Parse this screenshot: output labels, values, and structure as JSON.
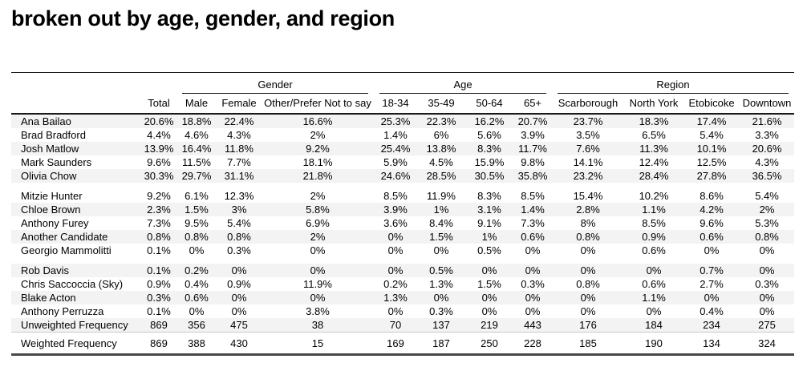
{
  "title": "broken out by age, gender, and region",
  "table": {
    "groups": [
      {
        "label": "Gender",
        "span": 3
      },
      {
        "label": "Age",
        "span": 4
      },
      {
        "label": "Region",
        "span": 4
      }
    ],
    "columns": [
      "Total",
      "Male",
      "Female",
      "Other/Prefer Not to say",
      "18-34",
      "35-49",
      "50-64",
      "65+",
      "Scarborough",
      "North York",
      "Etobicoke",
      "Downtown"
    ],
    "row_groups": [
      {
        "rows": [
          {
            "name": "Ana Bailao",
            "values": [
              "20.6%",
              "18.8%",
              "22.4%",
              "16.6%",
              "25.3%",
              "22.3%",
              "16.2%",
              "20.7%",
              "23.7%",
              "18.3%",
              "17.4%",
              "21.6%"
            ]
          },
          {
            "name": "Brad Bradford",
            "values": [
              "4.4%",
              "4.6%",
              "4.3%",
              "2%",
              "1.4%",
              "6%",
              "5.6%",
              "3.9%",
              "3.5%",
              "6.5%",
              "5.4%",
              "3.3%"
            ]
          },
          {
            "name": "Josh Matlow",
            "values": [
              "13.9%",
              "16.4%",
              "11.8%",
              "9.2%",
              "25.4%",
              "13.8%",
              "8.3%",
              "11.7%",
              "7.6%",
              "11.3%",
              "10.1%",
              "20.6%"
            ]
          },
          {
            "name": "Mark Saunders",
            "values": [
              "9.6%",
              "11.5%",
              "7.7%",
              "18.1%",
              "5.9%",
              "4.5%",
              "15.9%",
              "9.8%",
              "14.1%",
              "12.4%",
              "12.5%",
              "4.3%"
            ]
          },
          {
            "name": "Olivia Chow",
            "values": [
              "30.3%",
              "29.7%",
              "31.1%",
              "21.8%",
              "24.6%",
              "28.5%",
              "30.5%",
              "35.8%",
              "23.2%",
              "28.4%",
              "27.8%",
              "36.5%"
            ]
          }
        ]
      },
      {
        "rows": [
          {
            "name": "Mitzie Hunter",
            "values": [
              "9.2%",
              "6.1%",
              "12.3%",
              "2%",
              "8.5%",
              "11.9%",
              "8.3%",
              "8.5%",
              "15.4%",
              "10.2%",
              "8.6%",
              "5.4%"
            ]
          },
          {
            "name": "Chloe Brown",
            "values": [
              "2.3%",
              "1.5%",
              "3%",
              "5.8%",
              "3.9%",
              "1%",
              "3.1%",
              "1.4%",
              "2.8%",
              "1.1%",
              "4.2%",
              "2%"
            ]
          },
          {
            "name": "Anthony Furey",
            "values": [
              "7.3%",
              "9.5%",
              "5.4%",
              "6.9%",
              "3.6%",
              "8.4%",
              "9.1%",
              "7.3%",
              "8%",
              "8.5%",
              "9.6%",
              "5.3%"
            ]
          },
          {
            "name": "Another Candidate",
            "values": [
              "0.8%",
              "0.8%",
              "0.8%",
              "2%",
              "0%",
              "1.5%",
              "1%",
              "0.6%",
              "0.8%",
              "0.9%",
              "0.6%",
              "0.8%"
            ]
          },
          {
            "name": "Georgio Mammolitti",
            "values": [
              "0.1%",
              "0%",
              "0.3%",
              "0%",
              "0%",
              "0%",
              "0.5%",
              "0%",
              "0%",
              "0.6%",
              "0%",
              "0%"
            ]
          }
        ]
      },
      {
        "rows": [
          {
            "name": "Rob Davis",
            "values": [
              "0.1%",
              "0.2%",
              "0%",
              "0%",
              "0%",
              "0.5%",
              "0%",
              "0%",
              "0%",
              "0%",
              "0.7%",
              "0%"
            ]
          },
          {
            "name": "Chris Saccoccia (Sky)",
            "values": [
              "0.9%",
              "0.4%",
              "0.9%",
              "11.9%",
              "0.2%",
              "1.3%",
              "1.5%",
              "0.3%",
              "0.8%",
              "0.6%",
              "2.7%",
              "0.3%"
            ]
          },
          {
            "name": "Blake Acton",
            "values": [
              "0.3%",
              "0.6%",
              "0%",
              "0%",
              "1.3%",
              "0%",
              "0%",
              "0%",
              "0%",
              "1.1%",
              "0%",
              "0%"
            ]
          },
          {
            "name": "Anthony Perruzza",
            "values": [
              "0.1%",
              "0%",
              "0%",
              "3.8%",
              "0%",
              "0.3%",
              "0%",
              "0%",
              "0%",
              "0%",
              "0.4%",
              "0%"
            ]
          },
          {
            "name": "Unweighted Frequency",
            "values": [
              "869",
              "356",
              "475",
              "38",
              "70",
              "137",
              "219",
              "443",
              "176",
              "184",
              "234",
              "275"
            ]
          }
        ]
      }
    ],
    "footer_row": {
      "name": "Weighted Frequency",
      "values": [
        "869",
        "388",
        "430",
        "15",
        "169",
        "187",
        "250",
        "228",
        "185",
        "190",
        "134",
        "324"
      ]
    }
  }
}
